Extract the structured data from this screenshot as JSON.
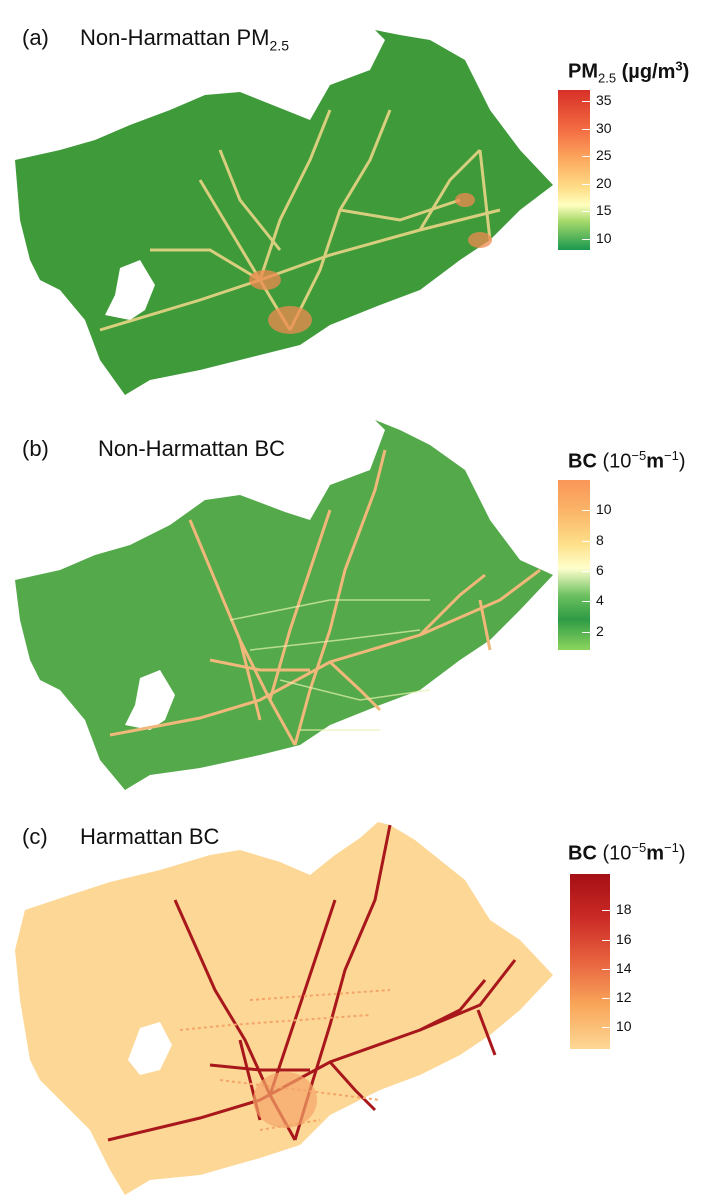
{
  "panels": [
    {
      "letter": "(a)",
      "title_main": "Non-Harmattan PM",
      "title_sub": "2.5",
      "legend": {
        "var_main": "PM",
        "var_sub": "2.5",
        "unit_open": "(µg/m",
        "unit_sup": "3",
        "unit_close": ")",
        "ticks": [
          "35",
          "30",
          "25",
          "20",
          "15",
          "10"
        ],
        "tick_values": [
          35,
          30,
          25,
          20,
          15,
          10
        ],
        "range": [
          8,
          37
        ],
        "stops": [
          {
            "offset": 0.0,
            "color": "#d73027"
          },
          {
            "offset": 0.25,
            "color": "#f46d43"
          },
          {
            "offset": 0.45,
            "color": "#fdae61"
          },
          {
            "offset": 0.62,
            "color": "#fee08b"
          },
          {
            "offset": 0.72,
            "color": "#ffffbf"
          },
          {
            "offset": 0.82,
            "color": "#a6d96a"
          },
          {
            "offset": 1.0,
            "color": "#1a9850"
          }
        ]
      },
      "map": {
        "base": "#3f9a3a",
        "road": "#f3d98a",
        "hot": "#f08a50"
      }
    },
    {
      "letter": "(b)",
      "title_main": "Non-Harmattan BC",
      "title_sub": "",
      "legend": {
        "var_main": "BC",
        "var_sub": "",
        "unit_open": "(10",
        "unit_sup": "−5",
        "unit_mid": "m",
        "unit_sup2": "−1",
        "unit_close": ")",
        "ticks": [
          "10",
          "8",
          "6",
          "4",
          "2"
        ],
        "tick_values": [
          10,
          8,
          6,
          4,
          2
        ],
        "range": [
          0.8,
          12
        ],
        "stops": [
          {
            "offset": 0.0,
            "color": "#f99558"
          },
          {
            "offset": 0.2,
            "color": "#fbb86a"
          },
          {
            "offset": 0.38,
            "color": "#fee08b"
          },
          {
            "offset": 0.52,
            "color": "#ffffcc"
          },
          {
            "offset": 0.68,
            "color": "#6cc05f"
          },
          {
            "offset": 0.82,
            "color": "#2e9b45"
          },
          {
            "offset": 1.0,
            "color": "#8cd45e"
          }
        ]
      },
      "map": {
        "base": "#54a94a",
        "road": "#f0b87a",
        "hot": "#f5a060"
      }
    },
    {
      "letter": "(c)",
      "title_main": "Harmattan BC",
      "title_sub": "",
      "legend": {
        "var_main": "BC",
        "var_sub": "",
        "unit_open": "(10",
        "unit_sup": "−5",
        "unit_mid": "m",
        "unit_sup2": "−1",
        "unit_close": ")",
        "ticks": [
          "18",
          "16",
          "14",
          "12",
          "10"
        ],
        "tick_values": [
          18,
          16,
          14,
          12,
          10
        ],
        "range": [
          8.5,
          20.5
        ],
        "stops": [
          {
            "offset": 0.0,
            "color": "#a50f15"
          },
          {
            "offset": 0.25,
            "color": "#cb2a25"
          },
          {
            "offset": 0.5,
            "color": "#e8633f"
          },
          {
            "offset": 0.75,
            "color": "#f9a65a"
          },
          {
            "offset": 1.0,
            "color": "#fdd895"
          }
        ]
      },
      "map": {
        "base": "#fdd795",
        "road": "#a8171b",
        "hot": "#f4a56a"
      }
    }
  ]
}
